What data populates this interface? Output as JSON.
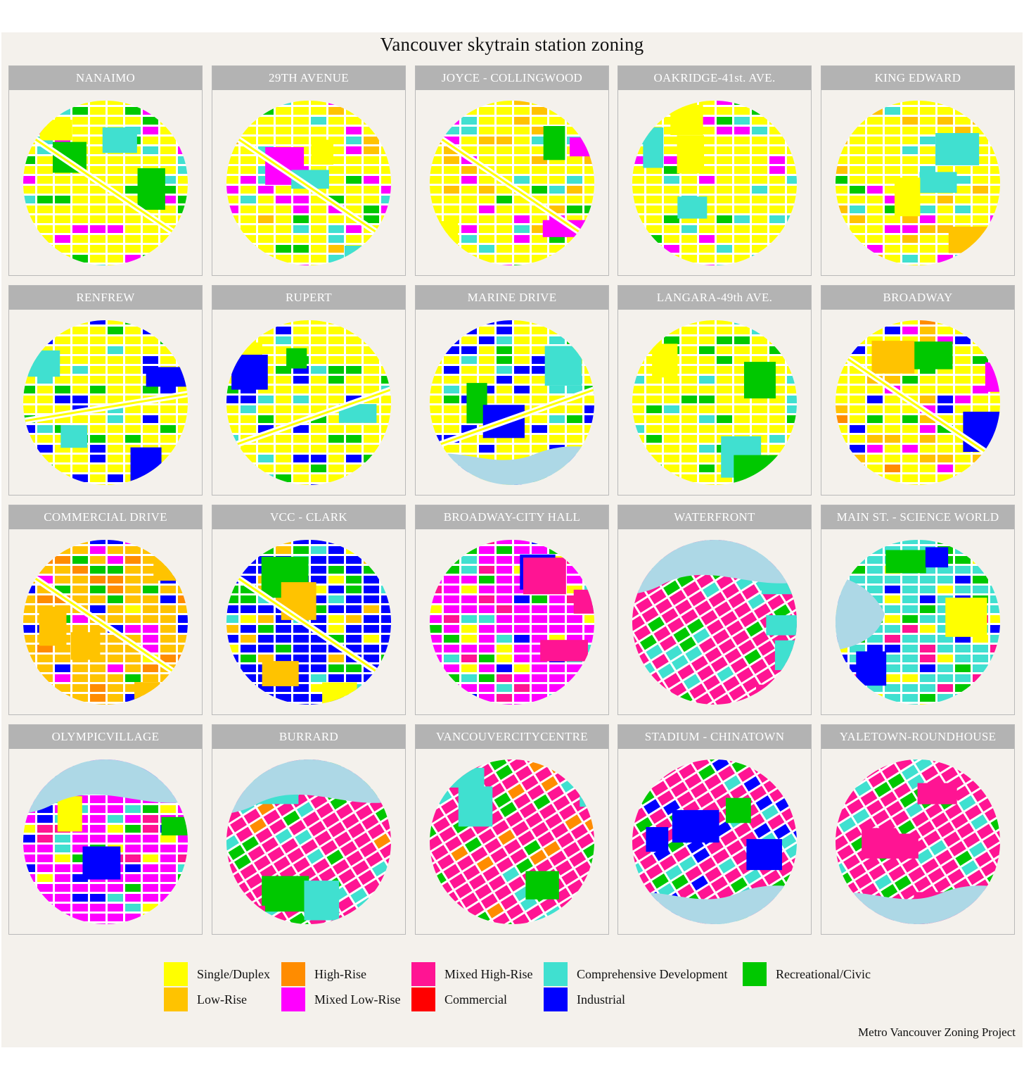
{
  "title": "Vancouver skytrain station zoning",
  "caption": "Metro Vancouver Zoning Project",
  "zone_colors": {
    "Single/Duplex": "#ffff00",
    "Low-Rise": "#ffc300",
    "High-Rise": "#ff8c00",
    "Mixed Low-Rise": "#ff00ff",
    "Mixed High-Rise": "#ff1493",
    "Commercial": "#ff0000",
    "Comprehensive Development": "#40e0d0",
    "Industrial": "#0000ff",
    "Recreational/Civic": "#00c800",
    "Water": "#add8e6",
    "Street": "#ffffff"
  },
  "legend": {
    "items": [
      {
        "label": "Single/Duplex",
        "color": "#ffff00"
      },
      {
        "label": "Low-Rise",
        "color": "#ffc300"
      },
      {
        "label": "High-Rise",
        "color": "#ff8c00"
      },
      {
        "label": "Mixed Low-Rise",
        "color": "#ff00ff"
      },
      {
        "label": "Mixed High-Rise",
        "color": "#ff1493"
      },
      {
        "label": "Commercial",
        "color": "#ff0000"
      },
      {
        "label": "Comprehensive Development",
        "color": "#40e0d0"
      },
      {
        "label": "Industrial",
        "color": "#0000ff"
      },
      {
        "label": "Recreational/Civic",
        "color": "#00c800"
      }
    ]
  },
  "stations": [
    {
      "name": "NANAIMO",
      "dominant": "Single/Duplex",
      "mix": [
        "Single/Duplex",
        "Single/Duplex",
        "Single/Duplex",
        "Recreational/Civic",
        "Comprehensive Development",
        "Mixed Low-Rise"
      ],
      "rail": "diagonal",
      "water": "none"
    },
    {
      "name": "29TH AVENUE",
      "dominant": "Single/Duplex",
      "mix": [
        "Single/Duplex",
        "Single/Duplex",
        "Low-Rise",
        "Recreational/Civic",
        "Mixed Low-Rise",
        "Comprehensive Development"
      ],
      "rail": "diagonal",
      "water": "none"
    },
    {
      "name": "JOYCE - COLLINGWOOD",
      "dominant": "Single/Duplex",
      "mix": [
        "Single/Duplex",
        "Single/Duplex",
        "Low-Rise",
        "Comprehensive Development",
        "Mixed Low-Rise",
        "Recreational/Civic"
      ],
      "rail": "diagonal",
      "water": "none"
    },
    {
      "name": "OAKRIDGE-41st. AVE.",
      "dominant": "Single/Duplex",
      "mix": [
        "Single/Duplex",
        "Single/Duplex",
        "Comprehensive Development",
        "Recreational/Civic",
        "Mixed Low-Rise"
      ],
      "rail": "none",
      "water": "none"
    },
    {
      "name": "KING EDWARD",
      "dominant": "Single/Duplex",
      "mix": [
        "Single/Duplex",
        "Single/Duplex",
        "Low-Rise",
        "Recreational/Civic",
        "Comprehensive Development",
        "Mixed Low-Rise"
      ],
      "rail": "none",
      "water": "none"
    },
    {
      "name": "RENFREW",
      "dominant": "Single/Duplex",
      "mix": [
        "Single/Duplex",
        "Single/Duplex",
        "Comprehensive Development",
        "Recreational/Civic",
        "Industrial"
      ],
      "rail": "horizontal",
      "water": "none"
    },
    {
      "name": "RUPERT",
      "dominant": "Single/Duplex",
      "mix": [
        "Single/Duplex",
        "Single/Duplex",
        "Industrial",
        "Comprehensive Development",
        "Recreational/Civic"
      ],
      "rail": "rising",
      "water": "none"
    },
    {
      "name": "MARINE DRIVE",
      "dominant": "Single/Duplex",
      "mix": [
        "Single/Duplex",
        "Industrial",
        "Industrial",
        "Comprehensive Development",
        "Recreational/Civic"
      ],
      "rail": "rising",
      "water": "bottom"
    },
    {
      "name": "LANGARA-49th AVE.",
      "dominant": "Single/Duplex",
      "mix": [
        "Single/Duplex",
        "Single/Duplex",
        "Comprehensive Development",
        "Recreational/Civic"
      ],
      "rail": "none",
      "water": "none"
    },
    {
      "name": "BROADWAY",
      "dominant": "Single/Duplex",
      "mix": [
        "Single/Duplex",
        "Low-Rise",
        "Low-Rise",
        "High-Rise",
        "Mixed Low-Rise",
        "Recreational/Civic",
        "Industrial"
      ],
      "rail": "diagonal",
      "water": "none"
    },
    {
      "name": "COMMERCIAL DRIVE",
      "dominant": "Low-Rise",
      "mix": [
        "Single/Duplex",
        "Low-Rise",
        "Low-Rise",
        "High-Rise",
        "Mixed Low-Rise",
        "Recreational/Civic",
        "Industrial"
      ],
      "rail": "diagonal",
      "water": "none"
    },
    {
      "name": "VCC - CLARK",
      "dominant": "Industrial",
      "mix": [
        "Industrial",
        "Single/Duplex",
        "Low-Rise",
        "Comprehensive Development",
        "Recreational/Civic"
      ],
      "rail": "diagonal",
      "water": "none"
    },
    {
      "name": "BROADWAY-CITY HALL",
      "dominant": "Mixed Low-Rise",
      "mix": [
        "Mixed Low-Rise",
        "Comprehensive Development",
        "Single/Duplex",
        "Industrial",
        "Mixed High-Rise",
        "Recreational/Civic"
      ],
      "rail": "none",
      "water": "none"
    },
    {
      "name": "WATERFRONT",
      "dominant": "Mixed High-Rise",
      "mix": [
        "Mixed High-Rise",
        "Mixed High-Rise",
        "Comprehensive Development",
        "Recreational/Civic"
      ],
      "rail": "none",
      "water": "top"
    },
    {
      "name": "MAIN ST. - SCIENCE WORLD",
      "dominant": "Comprehensive Development",
      "mix": [
        "Comprehensive Development",
        "Industrial",
        "Mixed High-Rise",
        "Recreational/Civic",
        "Single/Duplex"
      ],
      "rail": "none",
      "water": "left"
    },
    {
      "name": "OLYMPICVILLAGE",
      "dominant": "Mixed Low-Rise",
      "mix": [
        "Mixed Low-Rise",
        "Single/Duplex",
        "Industrial",
        "Comprehensive Development",
        "Mixed High-Rise",
        "Recreational/Civic"
      ],
      "rail": "none",
      "water": "top"
    },
    {
      "name": "BURRARD",
      "dominant": "Mixed High-Rise",
      "mix": [
        "Mixed High-Rise",
        "Mixed High-Rise",
        "Comprehensive Development",
        "High-Rise",
        "Recreational/Civic"
      ],
      "rail": "none",
      "water": "top"
    },
    {
      "name": "VANCOUVERCITYCENTRE",
      "dominant": "Mixed High-Rise",
      "mix": [
        "Mixed High-Rise",
        "Mixed High-Rise",
        "Comprehensive Development",
        "High-Rise",
        "Recreational/Civic"
      ],
      "rail": "none",
      "water": "none"
    },
    {
      "name": "STADIUM - CHINATOWN",
      "dominant": "Mixed High-Rise",
      "mix": [
        "Mixed High-Rise",
        "Comprehensive Development",
        "Recreational/Civic",
        "Industrial"
      ],
      "rail": "none",
      "water": "bottom"
    },
    {
      "name": "YALETOWN-ROUNDHOUSE",
      "dominant": "Mixed High-Rise",
      "mix": [
        "Mixed High-Rise",
        "Comprehensive Development",
        "Mixed High-Rise",
        "Recreational/Civic"
      ],
      "rail": "none",
      "water": "bottom"
    }
  ]
}
